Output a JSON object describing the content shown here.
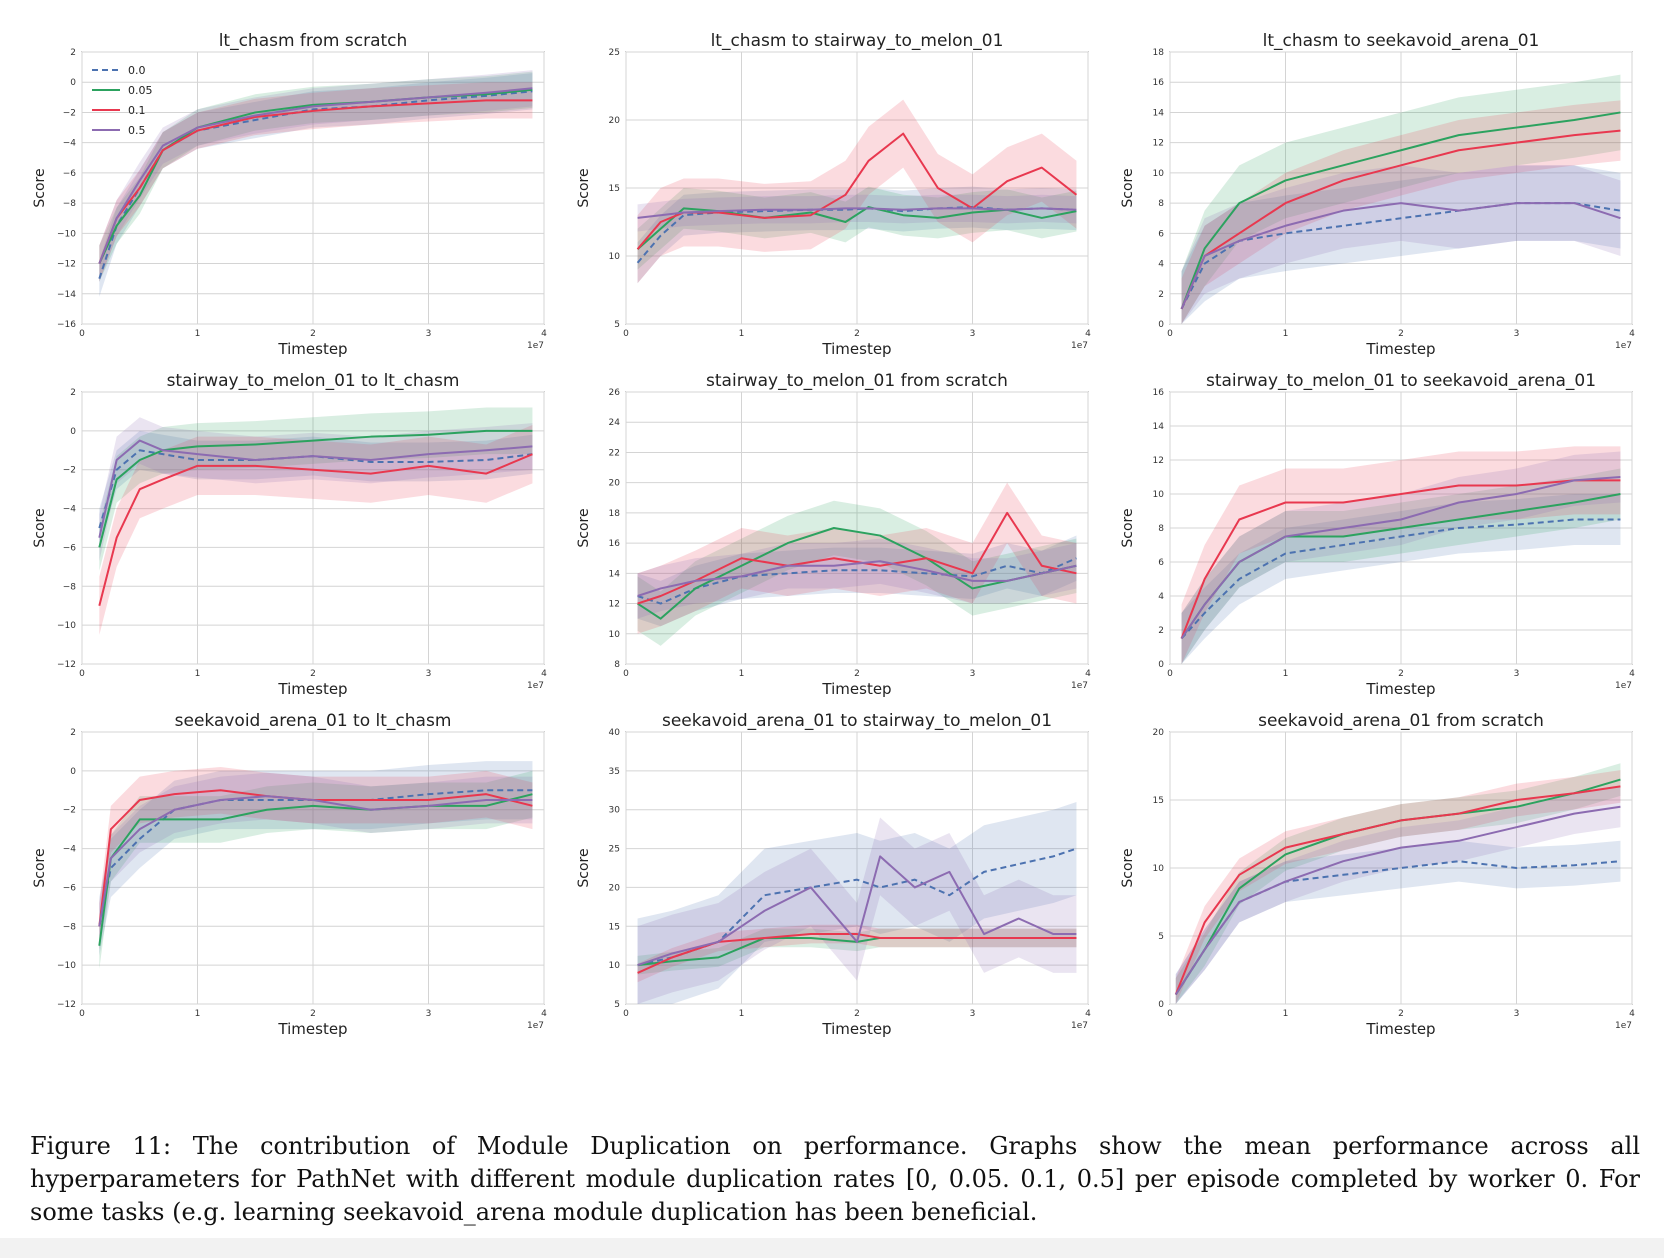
{
  "legend": {
    "entries": [
      {
        "label": "0.0",
        "color": "#4c72b0",
        "dash": true
      },
      {
        "label": "0.05",
        "color": "#2ca25f",
        "dash": false
      },
      {
        "label": "0.1",
        "color": "#e8384f",
        "dash": false
      },
      {
        "label": "0.5",
        "color": "#8c6bb1",
        "dash": false
      }
    ]
  },
  "caption": "Figure 11: The contribution of Module Duplication on performance. Graphs show the mean performance across all hyperparameters for PathNet with different module duplication rates [0, 0.05. 0.1, 0.5] per episode completed by worker 0. For some tasks (e.g. learning seekavoid_arena module duplication has been beneficial.",
  "chart_data": [
    {
      "type": "line",
      "title": "lt_chasm from scratch",
      "xlabel": "Timestep",
      "ylabel": "Score",
      "x_multiplier": "1e7",
      "xlim": [
        0,
        4
      ],
      "ylim": [
        -16,
        2
      ],
      "xticks": [
        0,
        1,
        2,
        3,
        4
      ],
      "yticks": [
        -16,
        -14,
        -12,
        -10,
        -8,
        -6,
        -4,
        -2,
        0,
        2
      ],
      "grid": true,
      "legend": "top-left",
      "x": [
        0.15,
        0.3,
        0.5,
        0.7,
        1.0,
        1.5,
        2.0,
        2.5,
        3.0,
        3.5,
        3.9
      ],
      "series": [
        {
          "name": "0.0",
          "values": [
            -13,
            -9.5,
            -7,
            -4.5,
            -3.2,
            -2.5,
            -1.8,
            -1.6,
            -1.2,
            -0.9,
            -0.6
          ],
          "band": 1.2
        },
        {
          "name": "0.05",
          "values": [
            -12,
            -9.5,
            -7.5,
            -4.5,
            -3,
            -2,
            -1.5,
            -1.3,
            -1.0,
            -0.8,
            -0.5
          ],
          "band": 1.2
        },
        {
          "name": "0.1",
          "values": [
            -12,
            -9,
            -7,
            -4.5,
            -3.2,
            -2.3,
            -1.9,
            -1.6,
            -1.4,
            -1.2,
            -1.2
          ],
          "band": 1.2
        },
        {
          "name": "0.5",
          "values": [
            -12,
            -9,
            -6.5,
            -4.2,
            -3,
            -2.2,
            -1.6,
            -1.3,
            -1.0,
            -0.7,
            -0.4
          ],
          "band": 1.2
        }
      ]
    },
    {
      "type": "line",
      "title": "lt_chasm to stairway_to_melon_01",
      "xlabel": "Timestep",
      "ylabel": "Score",
      "x_multiplier": "1e7",
      "xlim": [
        0,
        4
      ],
      "ylim": [
        5,
        25
      ],
      "xticks": [
        0,
        1,
        2,
        3,
        4
      ],
      "yticks": [
        5,
        10,
        15,
        20,
        25
      ],
      "grid": true,
      "x": [
        0.1,
        0.3,
        0.5,
        0.8,
        1.2,
        1.6,
        1.9,
        2.1,
        2.4,
        2.7,
        3.0,
        3.3,
        3.6,
        3.9
      ],
      "series": [
        {
          "name": "0.0",
          "values": [
            9.5,
            11.5,
            13,
            13.2,
            13.3,
            13.4,
            13.4,
            13.5,
            13.3,
            13.5,
            13.6,
            13.4,
            13.5,
            13.4
          ],
          "band": 1.5
        },
        {
          "name": "0.05",
          "values": [
            10.5,
            12,
            13.5,
            13.3,
            12.8,
            13.2,
            12.5,
            13.6,
            13,
            12.8,
            13.2,
            13.4,
            12.8,
            13.3
          ],
          "band": 1.5
        },
        {
          "name": "0.1",
          "values": [
            10.5,
            12.5,
            13.2,
            13.2,
            12.8,
            13.0,
            14.5,
            17,
            19,
            15,
            13.5,
            15.5,
            16.5,
            14.5
          ],
          "band": 2.5
        },
        {
          "name": "0.5",
          "values": [
            12.8,
            13,
            13.2,
            13.3,
            13.4,
            13.4,
            13.5,
            13.5,
            13.4,
            13.5,
            13.5,
            13.4,
            13.5,
            13.4
          ],
          "band": 1.0
        }
      ]
    },
    {
      "type": "line",
      "title": "lt_chasm to seekavoid_arena_01",
      "xlabel": "Timestep",
      "ylabel": "Score",
      "x_multiplier": "1e7",
      "xlim": [
        0,
        4
      ],
      "ylim": [
        0,
        18
      ],
      "xticks": [
        0,
        1,
        2,
        3,
        4
      ],
      "yticks": [
        0,
        2,
        4,
        6,
        8,
        10,
        12,
        14,
        16,
        18
      ],
      "grid": true,
      "x": [
        0.1,
        0.3,
        0.6,
        1.0,
        1.5,
        2.0,
        2.5,
        3.0,
        3.5,
        3.9
      ],
      "series": [
        {
          "name": "0.0",
          "values": [
            1,
            4,
            5.5,
            6,
            6.5,
            7,
            7.5,
            8,
            8,
            7.5
          ],
          "band": 2.5
        },
        {
          "name": "0.05",
          "values": [
            1,
            5,
            8,
            9.5,
            10.5,
            11.5,
            12.5,
            13,
            13.5,
            14
          ],
          "band": 2.5
        },
        {
          "name": "0.1",
          "values": [
            1,
            4.5,
            6,
            8,
            9.5,
            10.5,
            11.5,
            12,
            12.5,
            12.8
          ],
          "band": 2.0
        },
        {
          "name": "0.5",
          "values": [
            1,
            4.5,
            5.5,
            6.5,
            7.5,
            8,
            7.5,
            8,
            8,
            7
          ],
          "band": 2.5
        }
      ]
    },
    {
      "type": "line",
      "title": "stairway_to_melon_01 to lt_chasm",
      "xlabel": "Timestep",
      "ylabel": "Score",
      "x_multiplier": "1e7",
      "xlim": [
        0,
        4
      ],
      "ylim": [
        -12,
        2
      ],
      "xticks": [
        0,
        1,
        2,
        3,
        4
      ],
      "yticks": [
        -12,
        -10,
        -8,
        -6,
        -4,
        -2,
        0,
        2
      ],
      "grid": true,
      "x": [
        0.15,
        0.3,
        0.5,
        0.7,
        1.0,
        1.5,
        2.0,
        2.5,
        3.0,
        3.5,
        3.9
      ],
      "series": [
        {
          "name": "0.0",
          "values": [
            -5,
            -2,
            -1,
            -1.2,
            -1.5,
            -1.5,
            -1.3,
            -1.6,
            -1.6,
            -1.5,
            -1.2
          ],
          "band": 1.0
        },
        {
          "name": "0.05",
          "values": [
            -6,
            -2.5,
            -1.5,
            -1,
            -0.8,
            -0.7,
            -0.5,
            -0.3,
            -0.2,
            0,
            0
          ],
          "band": 1.2
        },
        {
          "name": "0.1",
          "values": [
            -9,
            -5.5,
            -3,
            -2.5,
            -1.8,
            -1.8,
            -2,
            -2.2,
            -1.8,
            -2.2,
            -1.2
          ],
          "band": 1.5
        },
        {
          "name": "0.5",
          "values": [
            -5.5,
            -1.5,
            -0.5,
            -1,
            -1.2,
            -1.5,
            -1.3,
            -1.5,
            -1.2,
            -1.0,
            -0.8
          ],
          "band": 1.2
        }
      ]
    },
    {
      "type": "line",
      "title": "stairway_to_melon_01 from scratch",
      "xlabel": "Timestep",
      "ylabel": "Score",
      "x_multiplier": "1e7",
      "xlim": [
        0,
        4
      ],
      "ylim": [
        8,
        26
      ],
      "xticks": [
        0,
        1,
        2,
        3,
        4
      ],
      "yticks": [
        8,
        10,
        12,
        14,
        16,
        18,
        20,
        22,
        24,
        26
      ],
      "grid": true,
      "x": [
        0.1,
        0.3,
        0.6,
        1.0,
        1.4,
        1.8,
        2.2,
        2.6,
        3.0,
        3.3,
        3.6,
        3.9
      ],
      "series": [
        {
          "name": "0.0",
          "values": [
            12.5,
            12,
            13,
            13.8,
            14,
            14.2,
            14.2,
            14,
            13.8,
            14.5,
            14,
            15
          ],
          "band": 1.5
        },
        {
          "name": "0.05",
          "values": [
            12,
            11,
            13,
            14.5,
            16,
            17,
            16.5,
            15,
            13,
            13.5,
            14,
            14.5
          ],
          "band": 1.8
        },
        {
          "name": "0.1",
          "values": [
            12,
            12.5,
            13.5,
            15,
            14.5,
            15,
            14.5,
            15,
            14,
            18,
            14.5,
            14
          ],
          "band": 2.0
        },
        {
          "name": "0.5",
          "values": [
            12.5,
            13,
            13.5,
            13.8,
            14.5,
            14.5,
            14.8,
            14.2,
            13.5,
            13.5,
            14,
            14.5
          ],
          "band": 1.5
        }
      ]
    },
    {
      "type": "line",
      "title": "stairway_to_melon_01 to seekavoid_arena_01",
      "xlabel": "Timestep",
      "ylabel": "Score",
      "x_multiplier": "1e7",
      "xlim": [
        0,
        4
      ],
      "ylim": [
        0,
        16
      ],
      "xticks": [
        0,
        1,
        2,
        3,
        4
      ],
      "yticks": [
        0,
        2,
        4,
        6,
        8,
        10,
        12,
        14,
        16
      ],
      "grid": true,
      "x": [
        0.1,
        0.3,
        0.6,
        1.0,
        1.5,
        2.0,
        2.5,
        3.0,
        3.5,
        3.9
      ],
      "series": [
        {
          "name": "0.0",
          "values": [
            1.5,
            3,
            5,
            6.5,
            7,
            7.5,
            8,
            8.2,
            8.5,
            8.5
          ],
          "band": 1.5
        },
        {
          "name": "0.05",
          "values": [
            1.5,
            3.5,
            6,
            7.5,
            7.5,
            8,
            8.5,
            9,
            9.5,
            10
          ],
          "band": 1.5
        },
        {
          "name": "0.1",
          "values": [
            1.5,
            5,
            8.5,
            9.5,
            9.5,
            10,
            10.5,
            10.5,
            10.8,
            10.8
          ],
          "band": 2.0
        },
        {
          "name": "0.5",
          "values": [
            1.5,
            3.5,
            6,
            7.5,
            8,
            8.5,
            9.5,
            10,
            10.8,
            11
          ],
          "band": 1.5
        }
      ]
    },
    {
      "type": "line",
      "title": "seekavoid_arena_01 to lt_chasm",
      "xlabel": "Timestep",
      "ylabel": "Score",
      "x_multiplier": "1e7",
      "xlim": [
        0,
        4
      ],
      "ylim": [
        -12,
        2
      ],
      "xticks": [
        0,
        1,
        2,
        3,
        4
      ],
      "yticks": [
        -12,
        -10,
        -8,
        -6,
        -4,
        -2,
        0,
        2
      ],
      "grid": true,
      "x": [
        0.15,
        0.25,
        0.5,
        0.8,
        1.2,
        1.6,
        2.0,
        2.5,
        3.0,
        3.5,
        3.9
      ],
      "series": [
        {
          "name": "0.0",
          "values": [
            -8,
            -5,
            -3.5,
            -2,
            -1.5,
            -1.5,
            -1.5,
            -1.5,
            -1.2,
            -1.0,
            -1.0
          ],
          "band": 1.5
        },
        {
          "name": "0.05",
          "values": [
            -9,
            -4.5,
            -2.5,
            -2.5,
            -2.5,
            -2,
            -1.8,
            -2,
            -1.8,
            -1.8,
            -1.2
          ],
          "band": 1.2
        },
        {
          "name": "0.1",
          "values": [
            -8,
            -3,
            -1.5,
            -1.2,
            -1,
            -1.3,
            -1.5,
            -1.5,
            -1.5,
            -1.2,
            -1.8
          ],
          "band": 1.2
        },
        {
          "name": "0.5",
          "values": [
            -8,
            -4.5,
            -3,
            -2,
            -1.5,
            -1.3,
            -1.5,
            -2,
            -1.8,
            -1.5,
            -1.5
          ],
          "band": 1.2
        }
      ]
    },
    {
      "type": "line",
      "title": "seekavoid_arena_01 to stairway_to_melon_01",
      "xlabel": "Timestep",
      "ylabel": "Score",
      "x_multiplier": "1e7",
      "xlim": [
        0,
        4
      ],
      "ylim": [
        5,
        40
      ],
      "xticks": [
        0,
        1,
        2,
        3,
        4
      ],
      "yticks": [
        5,
        10,
        15,
        20,
        25,
        30,
        35,
        40
      ],
      "grid": true,
      "x": [
        0.1,
        0.4,
        0.8,
        1.2,
        1.6,
        2.0,
        2.2,
        2.5,
        2.8,
        3.1,
        3.4,
        3.7,
        3.9
      ],
      "series": [
        {
          "name": "0.0",
          "values": [
            10,
            11,
            13,
            19,
            20,
            21,
            20,
            21,
            19,
            22,
            23,
            24,
            25
          ],
          "band": 6
        },
        {
          "name": "0.05",
          "values": [
            10,
            10.5,
            11,
            13.5,
            13.5,
            13,
            13.5,
            13.5,
            13.5,
            13.5,
            13.5,
            13.5,
            13.5
          ],
          "band": 1.2
        },
        {
          "name": "0.1",
          "values": [
            9,
            11,
            13,
            13.5,
            14,
            14,
            13.5,
            13.5,
            13.5,
            13.5,
            13.5,
            13.5,
            13.5
          ],
          "band": 1.2
        },
        {
          "name": "0.5",
          "values": [
            10,
            11.5,
            13,
            17,
            20,
            13,
            24,
            20,
            22,
            14,
            16,
            14,
            14
          ],
          "band": 5
        }
      ]
    },
    {
      "type": "line",
      "title": "seekavoid_arena_01 from scratch",
      "xlabel": "Timestep",
      "ylabel": "Score",
      "x_multiplier": "1e7",
      "xlim": [
        0,
        4
      ],
      "ylim": [
        0,
        20
      ],
      "xticks": [
        0,
        1,
        2,
        3,
        4
      ],
      "yticks": [
        0,
        5,
        10,
        15,
        20
      ],
      "grid": true,
      "x": [
        0.05,
        0.3,
        0.6,
        1.0,
        1.5,
        2.0,
        2.5,
        3.0,
        3.5,
        3.9
      ],
      "series": [
        {
          "name": "0.0",
          "values": [
            0.7,
            4,
            7.5,
            9,
            9.5,
            10,
            10.5,
            10,
            10.2,
            10.5
          ],
          "band": 1.5
        },
        {
          "name": "0.05",
          "values": [
            0.7,
            4,
            8.5,
            11,
            12.5,
            13.5,
            14,
            14.5,
            15.5,
            16.5
          ],
          "band": 1.2
        },
        {
          "name": "0.1",
          "values": [
            0.7,
            6,
            9.5,
            11.5,
            12.5,
            13.5,
            14,
            15,
            15.5,
            16
          ],
          "band": 1.2
        },
        {
          "name": "0.5",
          "values": [
            0.7,
            4,
            7.5,
            9,
            10.5,
            11.5,
            12,
            13,
            14,
            14.5
          ],
          "band": 1.5
        }
      ]
    }
  ]
}
